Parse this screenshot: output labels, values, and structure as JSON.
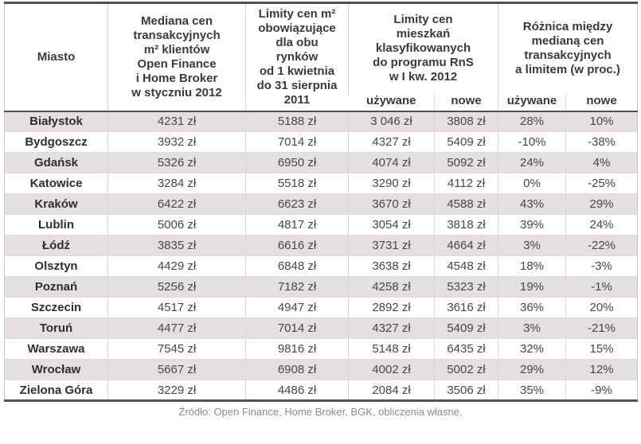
{
  "colors": {
    "stripe": "#e5dee3",
    "border_dark": "#57504f",
    "border_light": "#ddd2d8",
    "text": "#474747",
    "source_text": "#8b8b8b"
  },
  "header": {
    "miasto": "Miasto",
    "mediana": "Mediana cen\ntransakcyjnych\nm² klientów\nOpen Finance\ni Home Broker\nw styczniu 2012",
    "limity": "Limity cen m²\nobowiązujące\ndla obu\nrynków\nod 1 kwietnia\ndo 31 sierpnia\n2011",
    "rns": "Limity cen\nmieszkań\nklasyfikowanych\ndo programu RnS\nw I kw. 2012",
    "roznica": "Różnica między\nmedianą cen\ntransakcyjnych\na limitem (w proc.)",
    "sub": [
      "używane",
      "nowe",
      "używane",
      "nowe"
    ]
  },
  "chart_data": {
    "type": "table",
    "columns": [
      "Miasto",
      "Mediana cen transakcyjnych m² klientów Open Finance i Home Broker w styczniu 2012",
      "Limity cen m² obowiązujące dla obu rynków od 1 kwietnia do 31 sierpnia 2011",
      "Limity cen mieszkań klasyfikowanych do programu RnS w I kw. 2012 — używane",
      "Limity cen mieszkań klasyfikowanych do programu RnS w I kw. 2012 — nowe",
      "Różnica między medianą cen transakcyjnych a limitem (w proc.) — używane",
      "Różnica między medianą cen transakcyjnych a limitem (w proc.) — nowe"
    ],
    "rows": [
      [
        "Białystok",
        "4231 zł",
        "5188 zł",
        "3 046 zł",
        "3808 zł",
        "28%",
        "10%"
      ],
      [
        "Bydgoszcz",
        "3932 zł",
        "7014 zł",
        "4327 zł",
        "5409 zł",
        "-10%",
        "-38%"
      ],
      [
        "Gdańsk",
        "5326 zł",
        "6950 zł",
        "4074 zł",
        "5092 zł",
        "24%",
        "4%"
      ],
      [
        "Katowice",
        "3284 zł",
        "5518 zł",
        "3290 zł",
        "4112 zł",
        "0%",
        "-25%"
      ],
      [
        "Kraków",
        "6422 zł",
        "6623 zł",
        "3670 zł",
        "4588 zł",
        "43%",
        "29%"
      ],
      [
        "Lublin",
        "5006 zł",
        "4817 zł",
        "3054 zł",
        "3818 zł",
        "39%",
        "24%"
      ],
      [
        "Łódź",
        "3835 zł",
        "6616 zł",
        "3731 zł",
        "4664 zł",
        "3%",
        "-22%"
      ],
      [
        "Olsztyn",
        "4429 zł",
        "6848 zł",
        "3638 zł",
        "4548 zł",
        "18%",
        "-3%"
      ],
      [
        "Poznań",
        "5256 zł",
        "7182 zł",
        "4258 zł",
        "5323 zł",
        "19%",
        "-1%"
      ],
      [
        "Szczecin",
        "4517 zł",
        "4947 zł",
        "2892 zł",
        "3616 zł",
        "36%",
        "20%"
      ],
      [
        "Toruń",
        "4477 zł",
        "7014 zł",
        "4327 zł",
        "5409 zł",
        "3%",
        "-21%"
      ],
      [
        "Warszawa",
        "7545 zł",
        "9816 zł",
        "5148 zł",
        "6435 zł",
        "32%",
        "15%"
      ],
      [
        "Wrocław",
        "5667 zł",
        "6908 zł",
        "4002 zł",
        "5002 zł",
        "29%",
        "12%"
      ],
      [
        "Zielona Góra",
        "3229 zł",
        "4486 zł",
        "2084 zł",
        "3506 zł",
        "35%",
        "-9%"
      ]
    ]
  },
  "source": "Źródło: Open Finance, Home Broker, BGK, obliczenia własne,"
}
